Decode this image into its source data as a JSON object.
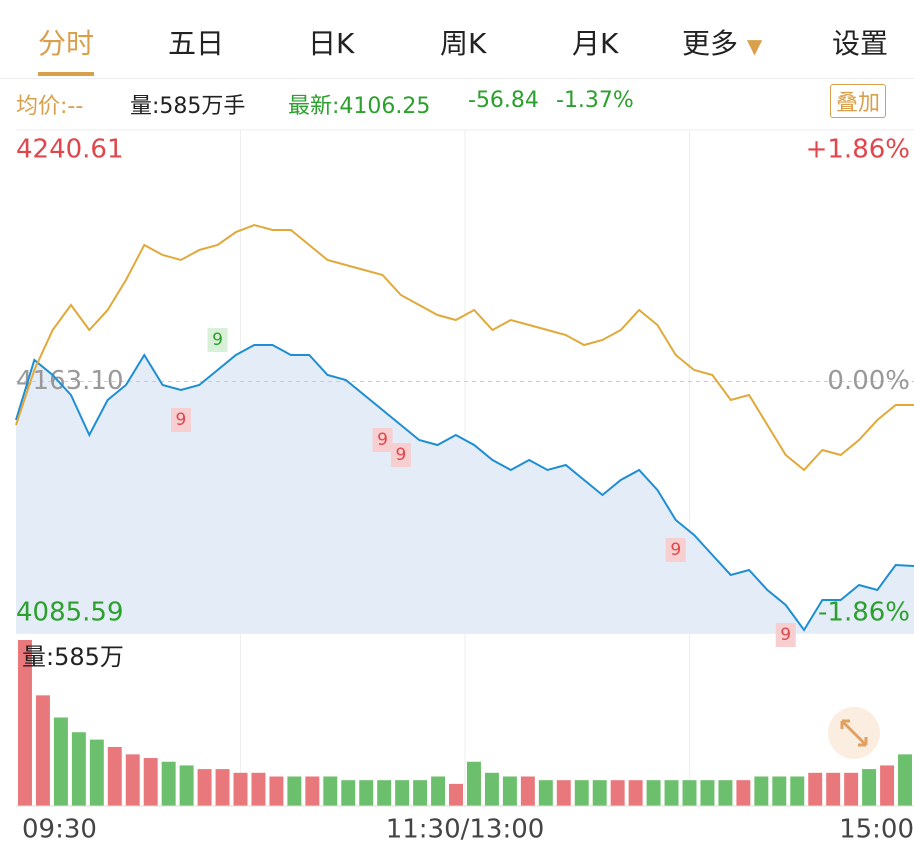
{
  "tabs": [
    "分时",
    "五日",
    "日K",
    "周K",
    "月K",
    "更多",
    "设置"
  ],
  "info": {
    "avg_price": "均价:--",
    "volume": "量:585万手",
    "latest": "最新:4106.25",
    "change": "-56.84",
    "change_pct": "-1.37%"
  },
  "overlay_button": "叠加",
  "chart_data": [
    {
      "type": "line",
      "ylim": [
        4085.59,
        4240.61
      ],
      "yticks": [
        4240.61,
        {
          "value": 4163.1,
          "label": "4163.10"
        },
        4085.59
      ],
      "y2lim": [
        -1.86,
        1.86
      ],
      "y2ticks": [
        {
          "value": 1.86,
          "label": "+1.86%"
        },
        {
          "value": 0,
          "label": "0.00%"
        },
        {
          "value": -1.86,
          "label": "-1.86%"
        }
      ],
      "xlim": [
        0,
        49
      ],
      "xticks": [
        {
          "value": 0,
          "label": "09:30"
        },
        {
          "value": 24.5,
          "label": "11:30/13:00"
        },
        {
          "value": 49,
          "label": "15:00"
        }
      ],
      "series": [
        {
          "color": "#1e8ed4",
          "values": [
            4151.23,
            4169.73,
            4165.1,
            4158.94,
            4146.61,
            4157.4,
            4162.02,
            4171.27,
            4162.02,
            4160.48,
            4162.02,
            4166.64,
            4171.27,
            4174.35,
            4174.35,
            4171.27,
            4171.27,
            4165.1,
            4163.56,
            4158.94,
            4154.32,
            4149.69,
            4145.07,
            4143.53,
            4146.61,
            4143.53,
            4138.91,
            4135.83,
            4138.91,
            4135.83,
            4137.37,
            4132.74,
            4128.12,
            4132.74,
            4135.83,
            4129.66,
            4120.42,
            4115.79,
            4109.63,
            4103.47,
            4105.01,
            4098.84,
            4094.22,
            4086.51,
            4095.76,
            4095.76,
            4100.38,
            4098.84,
            4106.55,
            4106.25
          ]
        },
        {
          "color": "#e0a93a",
          "values": [
            4149.69,
            4166.64,
            4178.97,
            4186.68,
            4178.97,
            4185.14,
            4194.38,
            4205.17,
            4202.09,
            4200.55,
            4203.63,
            4205.17,
            4209.17,
            4211.33,
            4209.79,
            4209.79,
            4205.17,
            4200.55,
            4199.0,
            4197.46,
            4195.92,
            4189.76,
            4186.68,
            4183.59,
            4182.05,
            4185.14,
            4178.97,
            4182.05,
            4180.51,
            4178.97,
            4177.43,
            4174.35,
            4175.89,
            4178.97,
            4185.14,
            4180.51,
            4171.27,
            4166.64,
            4165.1,
            4157.4,
            4158.94,
            4149.69,
            4140.45,
            4135.83,
            4141.99,
            4140.45,
            4145.07,
            4151.23,
            4155.86,
            4155.86
          ]
        }
      ],
      "signals": [
        {
          "label": "9",
          "index": 11,
          "kind": "up"
        },
        {
          "label": "9",
          "index": 9,
          "kind": "down"
        },
        {
          "label": "9",
          "index": 20,
          "kind": "down"
        },
        {
          "label": "9",
          "index": 21,
          "kind": "down"
        },
        {
          "label": "9",
          "index": 36,
          "kind": "down"
        },
        {
          "label": "9",
          "index": 42,
          "kind": "down"
        }
      ]
    },
    {
      "type": "bar",
      "title": "量:585万",
      "ylim": [
        0,
        45
      ],
      "values": [
        45,
        30,
        24,
        20,
        18,
        16,
        14,
        13,
        12,
        11,
        10,
        10,
        9,
        9,
        8,
        8,
        8,
        8,
        7,
        7,
        7,
        7,
        7,
        8,
        6,
        12,
        9,
        8,
        8,
        7,
        7,
        7,
        7,
        7,
        7,
        7,
        7,
        7,
        7,
        7,
        7,
        8,
        8,
        8,
        9,
        9,
        9,
        10,
        11,
        14
      ]
    }
  ]
}
